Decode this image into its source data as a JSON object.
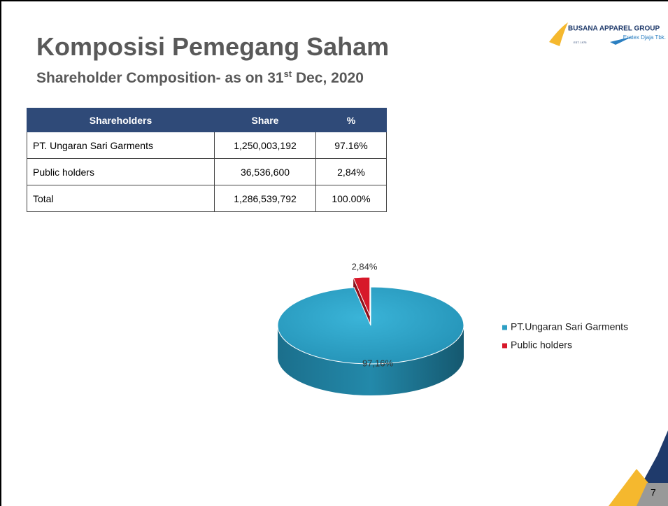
{
  "logo": {
    "name": "BUSANA APPAREL GROUP",
    "est": "EST. 1975",
    "company": "Eratex Djaja Tbk."
  },
  "header": {
    "title": "Komposisi Pemegang Saham",
    "subtitle": "Shareholder Composition- as on 31",
    "subtitle_sup": "st",
    "subtitle_end": " Dec, 2020"
  },
  "table": {
    "columns": [
      "Shareholders",
      "Share",
      "%"
    ],
    "rows": [
      [
        "PT. Ungaran Sari Garments",
        "1,250,003,192",
        "97.16%"
      ],
      [
        "Public holders",
        "36,536,600",
        "2,84%"
      ],
      [
        "Total",
        "1,286,539,792",
        "100.00%"
      ]
    ]
  },
  "chart_data": {
    "type": "pie",
    "categories": [
      "PT.Ungaran Sari Garments",
      "Public holders"
    ],
    "values": [
      97.16,
      2.84
    ],
    "value_labels": [
      "97,16%",
      "2,84%"
    ],
    "colors": [
      "#2e9fc4",
      "#d7182a"
    ],
    "legend": "right"
  },
  "page_number": "7"
}
